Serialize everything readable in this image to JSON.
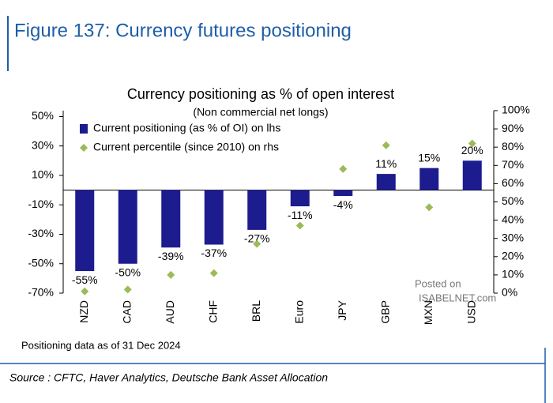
{
  "header": {
    "title": "Figure 137: Currency futures positioning"
  },
  "chart_data": {
    "type": "bar",
    "title": "Currency positioning as % of open interest",
    "subtitle": "(Non commercial net longs)",
    "categories": [
      "NZD",
      "CAD",
      "AUD",
      "CHF",
      "BRL",
      "Euro",
      "JPY",
      "GBP",
      "MXN",
      "USD"
    ],
    "series": [
      {
        "name": "Current positioning (as % of OI) on lhs",
        "color": "#1c1c8f",
        "type": "bar",
        "values": [
          -55,
          -50,
          -39,
          -37,
          -27,
          -11,
          -4,
          11,
          15,
          20
        ],
        "value_labels": [
          "-55%",
          "-50%",
          "-39%",
          "-37%",
          "-27%",
          "-11%",
          "-4%",
          "11%",
          "15%",
          "20%"
        ]
      },
      {
        "name": "Current percentile (since 2010) on rhs",
        "color": "#9bbb59",
        "type": "scatter",
        "axis": "y2",
        "values": [
          1,
          2,
          10,
          11,
          27,
          37,
          68,
          81,
          47,
          82
        ]
      }
    ],
    "ylim": [
      -70,
      54
    ],
    "yticks": [
      {
        "value": -70,
        "label": "-70%"
      },
      {
        "value": -50,
        "label": "-50%"
      },
      {
        "value": -30,
        "label": "-30%"
      },
      {
        "value": -10,
        "label": "-10%"
      },
      {
        "value": 10,
        "label": "10%"
      },
      {
        "value": 30,
        "label": "30%"
      },
      {
        "value": 50,
        "label": "50%"
      }
    ],
    "y2lim": [
      0,
      100
    ],
    "y2ticks": [
      {
        "value": 0,
        "label": "0%"
      },
      {
        "value": 10,
        "label": "10%"
      },
      {
        "value": 20,
        "label": "20%"
      },
      {
        "value": 30,
        "label": "30%"
      },
      {
        "value": 40,
        "label": "40%"
      },
      {
        "value": 50,
        "label": "50%"
      },
      {
        "value": 60,
        "label": "60%"
      },
      {
        "value": 70,
        "label": "70%"
      },
      {
        "value": 80,
        "label": "80%"
      },
      {
        "value": 90,
        "label": "90%"
      },
      {
        "value": 100,
        "label": "100%"
      }
    ],
    "legend": "top-left",
    "footnote": "Positioning data as of 31 Dec 2024",
    "source": "Source : CFTC, Haver Analytics, Deutsche Bank Asset Allocation"
  },
  "watermark": {
    "line1": "Posted on",
    "line2": "ISABELNET.com"
  }
}
